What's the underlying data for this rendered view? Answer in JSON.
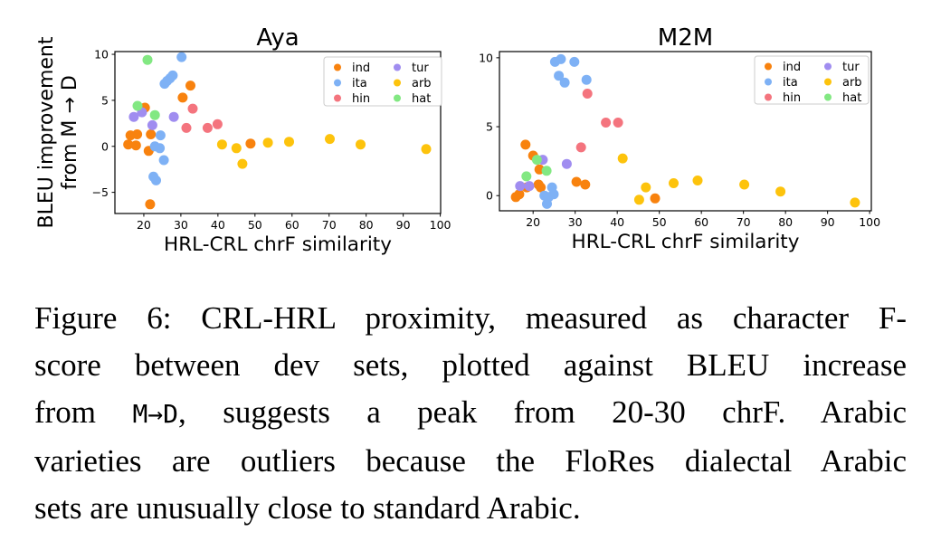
{
  "figure": {
    "caption": {
      "lines": [
        {
          "justify": true,
          "segments": [
            {
              "text": "Figure 6: CRL-HRL proximity, measured as character F-"
            }
          ]
        },
        {
          "justify": true,
          "segments": [
            {
              "text": "score between dev sets, plotted against BLEU increase"
            }
          ]
        },
        {
          "justify": true,
          "segments": [
            {
              "text": "from "
            },
            {
              "text": "M→D",
              "mono": true
            },
            {
              "text": ", suggests a peak from 20-30 chrF. Arabic"
            }
          ]
        },
        {
          "justify": true,
          "segments": [
            {
              "text": "varieties are outliers because the FloRes dialectal Arabic"
            }
          ]
        },
        {
          "justify": false,
          "segments": [
            {
              "text": "sets are unusually close to standard Arabic."
            }
          ]
        }
      ]
    }
  },
  "palette": {
    "ind": "#f8820e",
    "ita": "#7eb1f5",
    "hin": "#f4747e",
    "tur": "#a08df0",
    "arb": "#fdc30c",
    "hat": "#82e882"
  },
  "chart_data": [
    {
      "type": "scatter",
      "title": "Aya",
      "xlabel": "HRL-CRL chrF similarity",
      "ylabel_lines": [
        "BLEU improvement",
        "from M → D"
      ],
      "xlim": [
        12.2,
        100.1
      ],
      "ylim": [
        -7.3,
        10.3
      ],
      "xticks": [
        20,
        30,
        40,
        50,
        60,
        70,
        80,
        90,
        100
      ],
      "yticks": [
        -5,
        0,
        5,
        10
      ],
      "grid": false,
      "legend_position": "upper right",
      "legend_columns": 2,
      "series": [
        {
          "name": "ind",
          "color": "#f8820e",
          "points": [
            [
              16.4,
              1.2
            ],
            [
              18.2,
              1.3
            ],
            [
              15.8,
              0.2
            ],
            [
              17.9,
              0.1
            ],
            [
              20.3,
              4.2
            ],
            [
              21.9,
              1.3
            ],
            [
              21.3,
              -0.5
            ],
            [
              30.5,
              5.3
            ],
            [
              32.6,
              6.6
            ],
            [
              48.8,
              0.3
            ],
            [
              21.7,
              -6.3
            ]
          ]
        },
        {
          "name": "ita",
          "color": "#7eb1f5",
          "points": [
            [
              30.2,
              9.7
            ],
            [
              25.6,
              6.8
            ],
            [
              26.3,
              7.1
            ],
            [
              27.1,
              7.4
            ],
            [
              27.8,
              7.7
            ],
            [
              24.5,
              1.2
            ],
            [
              23.0,
              0.0
            ],
            [
              24.3,
              -0.2
            ],
            [
              25.4,
              -1.5
            ],
            [
              22.6,
              -3.3
            ],
            [
              23.3,
              -3.7
            ]
          ]
        },
        {
          "name": "hin",
          "color": "#f4747e",
          "points": [
            [
              33.2,
              4.1
            ],
            [
              31.5,
              2.0
            ],
            [
              37.2,
              2.0
            ],
            [
              39.9,
              2.4
            ]
          ]
        },
        {
          "name": "tur",
          "color": "#a08df0",
          "points": [
            [
              17.3,
              3.2
            ],
            [
              19.5,
              3.7
            ],
            [
              22.3,
              2.3
            ],
            [
              28.1,
              3.2
            ]
          ]
        },
        {
          "name": "arb",
          "color": "#fdc30c",
          "points": [
            [
              41.1,
              0.2
            ],
            [
              45.0,
              -0.2
            ],
            [
              46.6,
              -1.9
            ],
            [
              53.5,
              0.4
            ],
            [
              59.2,
              0.5
            ],
            [
              70.2,
              0.8
            ],
            [
              78.5,
              0.2
            ],
            [
              96.2,
              -0.3
            ]
          ]
        },
        {
          "name": "hat",
          "color": "#82e882",
          "points": [
            [
              21.0,
              9.4
            ],
            [
              18.3,
              4.4
            ],
            [
              23.0,
              3.4
            ]
          ]
        }
      ]
    },
    {
      "type": "scatter",
      "title": "M2M",
      "xlabel": "HRL-CRL chrF similarity",
      "ylabel_lines": [],
      "xlim": [
        12.0,
        100.4
      ],
      "ylim": [
        -1.1,
        10.45
      ],
      "xticks": [
        20,
        30,
        40,
        50,
        60,
        70,
        80,
        90,
        100
      ],
      "yticks": [
        0,
        5,
        10
      ],
      "grid": false,
      "legend_position": "upper right",
      "legend_columns": 2,
      "series": [
        {
          "name": "ind",
          "color": "#f8820e",
          "points": [
            [
              15.9,
              -0.1
            ],
            [
              16.7,
              0.1
            ],
            [
              18.2,
              3.7
            ],
            [
              20.0,
              2.9
            ],
            [
              21.5,
              1.9
            ],
            [
              21.3,
              0.8
            ],
            [
              21.8,
              0.6
            ],
            [
              18.5,
              0.6
            ],
            [
              30.3,
              1.0
            ],
            [
              32.4,
              0.8
            ],
            [
              49.0,
              -0.2
            ]
          ]
        },
        {
          "name": "ita",
          "color": "#7eb1f5",
          "points": [
            [
              25.2,
              9.7
            ],
            [
              26.6,
              9.9
            ],
            [
              29.8,
              9.7
            ],
            [
              26.1,
              8.7
            ],
            [
              27.5,
              8.2
            ],
            [
              32.7,
              8.4
            ],
            [
              22.7,
              0.0
            ],
            [
              23.7,
              -0.1
            ],
            [
              24.5,
              0.6
            ],
            [
              24.9,
              0.1
            ],
            [
              23.3,
              -0.6
            ]
          ]
        },
        {
          "name": "hin",
          "color": "#f4747e",
          "points": [
            [
              32.9,
              7.4
            ],
            [
              31.4,
              3.5
            ],
            [
              37.3,
              5.3
            ],
            [
              40.2,
              5.3
            ]
          ]
        },
        {
          "name": "tur",
          "color": "#a08df0",
          "points": [
            [
              16.9,
              0.7
            ],
            [
              19.1,
              0.7
            ],
            [
              22.3,
              2.6
            ],
            [
              28.0,
              2.3
            ]
          ]
        },
        {
          "name": "arb",
          "color": "#fdc30c",
          "points": [
            [
              41.3,
              2.7
            ],
            [
              45.2,
              -0.3
            ],
            [
              46.8,
              0.6
            ],
            [
              53.4,
              0.9
            ],
            [
              59.1,
              1.1
            ],
            [
              70.2,
              0.8
            ],
            [
              78.8,
              0.3
            ],
            [
              96.5,
              -0.5
            ]
          ]
        },
        {
          "name": "hat",
          "color": "#82e882",
          "points": [
            [
              20.9,
              2.6
            ],
            [
              18.4,
              1.4
            ],
            [
              23.2,
              1.8
            ]
          ]
        }
      ]
    }
  ]
}
